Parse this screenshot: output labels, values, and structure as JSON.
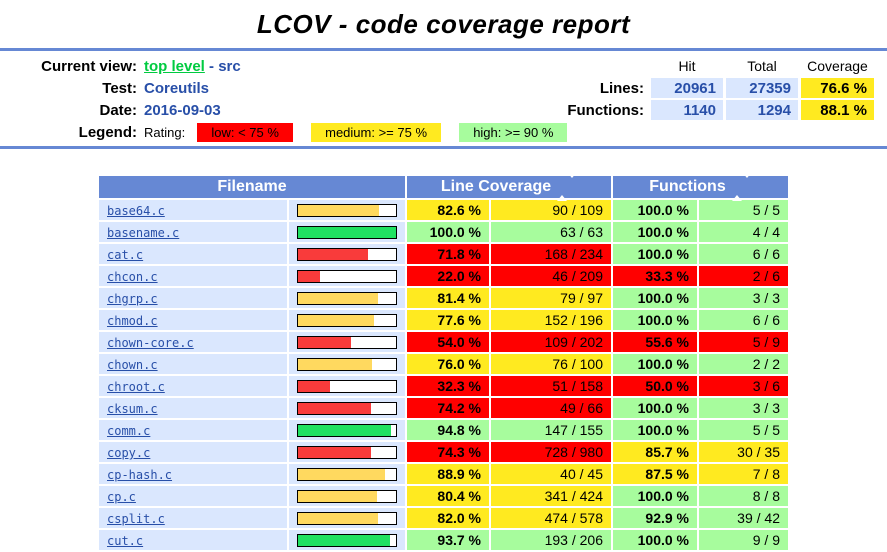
{
  "page": {
    "title": "LCOV - code coverage report"
  },
  "info": {
    "current_view_label": "Current view:",
    "current_view_link": "top level",
    "current_view_sep": "-",
    "current_view_page": "src",
    "test_label": "Test:",
    "test_value": "Coreutils",
    "date_label": "Date:",
    "date_value": "2016-09-03",
    "legend_label": "Legend:",
    "rating_label": "Rating:",
    "legend_low": "low: < 75 %",
    "legend_medium": "medium: >= 75 %",
    "legend_high": "high: >= 90 %",
    "col_hit": "Hit",
    "col_total": "Total",
    "col_coverage": "Coverage",
    "lines_label": "Lines:",
    "lines_hit": "20961",
    "lines_total": "27359",
    "lines_coverage": "76.6 %",
    "functions_label": "Functions:",
    "functions_hit": "1140",
    "functions_total": "1294",
    "functions_coverage": "88.1 %"
  },
  "colors": {
    "header_blue": "#6688D4",
    "cell_blue": "#DAE7FE",
    "value_text_blue": "#284FA8",
    "visited_link_green": "#00CB40",
    "rating": {
      "low": {
        "cell": "#FF0000",
        "bar": "#F93B3B"
      },
      "medium": {
        "cell": "#FFEA20",
        "bar": "#FFD95F"
      },
      "high": {
        "cell": "#A7FC9D",
        "bar": "#20E162"
      }
    }
  },
  "table": {
    "headers": {
      "filename": "Filename",
      "line_coverage": "Line Coverage",
      "functions": "Functions"
    },
    "rows": [
      {
        "file": "base64.c",
        "line_pct": 82.6,
        "line_pct_label": "82.6 %",
        "line_rating": "medium",
        "line_ratio": "90 / 109",
        "func_pct_label": "100.0 %",
        "func_rating": "high",
        "func_ratio": "5 / 5"
      },
      {
        "file": "basename.c",
        "line_pct": 100.0,
        "line_pct_label": "100.0 %",
        "line_rating": "high",
        "line_ratio": "63 / 63",
        "func_pct_label": "100.0 %",
        "func_rating": "high",
        "func_ratio": "4 / 4"
      },
      {
        "file": "cat.c",
        "line_pct": 71.8,
        "line_pct_label": "71.8 %",
        "line_rating": "low",
        "line_ratio": "168 / 234",
        "func_pct_label": "100.0 %",
        "func_rating": "high",
        "func_ratio": "6 / 6"
      },
      {
        "file": "chcon.c",
        "line_pct": 22.0,
        "line_pct_label": "22.0 %",
        "line_rating": "low",
        "line_ratio": "46 / 209",
        "func_pct_label": "33.3 %",
        "func_rating": "low",
        "func_ratio": "2 / 6"
      },
      {
        "file": "chgrp.c",
        "line_pct": 81.4,
        "line_pct_label": "81.4 %",
        "line_rating": "medium",
        "line_ratio": "79 / 97",
        "func_pct_label": "100.0 %",
        "func_rating": "high",
        "func_ratio": "3 / 3"
      },
      {
        "file": "chmod.c",
        "line_pct": 77.6,
        "line_pct_label": "77.6 %",
        "line_rating": "medium",
        "line_ratio": "152 / 196",
        "func_pct_label": "100.0 %",
        "func_rating": "high",
        "func_ratio": "6 / 6"
      },
      {
        "file": "chown-core.c",
        "line_pct": 54.0,
        "line_pct_label": "54.0 %",
        "line_rating": "low",
        "line_ratio": "109 / 202",
        "func_pct_label": "55.6 %",
        "func_rating": "low",
        "func_ratio": "5 / 9"
      },
      {
        "file": "chown.c",
        "line_pct": 76.0,
        "line_pct_label": "76.0 %",
        "line_rating": "medium",
        "line_ratio": "76 / 100",
        "func_pct_label": "100.0 %",
        "func_rating": "high",
        "func_ratio": "2 / 2"
      },
      {
        "file": "chroot.c",
        "line_pct": 32.3,
        "line_pct_label": "32.3 %",
        "line_rating": "low",
        "line_ratio": "51 / 158",
        "func_pct_label": "50.0 %",
        "func_rating": "low",
        "func_ratio": "3 / 6"
      },
      {
        "file": "cksum.c",
        "line_pct": 74.2,
        "line_pct_label": "74.2 %",
        "line_rating": "low",
        "line_ratio": "49 / 66",
        "func_pct_label": "100.0 %",
        "func_rating": "high",
        "func_ratio": "3 / 3"
      },
      {
        "file": "comm.c",
        "line_pct": 94.8,
        "line_pct_label": "94.8 %",
        "line_rating": "high",
        "line_ratio": "147 / 155",
        "func_pct_label": "100.0 %",
        "func_rating": "high",
        "func_ratio": "5 / 5"
      },
      {
        "file": "copy.c",
        "line_pct": 74.3,
        "line_pct_label": "74.3 %",
        "line_rating": "low",
        "line_ratio": "728 / 980",
        "func_pct_label": "85.7 %",
        "func_rating": "medium",
        "func_ratio": "30 / 35"
      },
      {
        "file": "cp-hash.c",
        "line_pct": 88.9,
        "line_pct_label": "88.9 %",
        "line_rating": "medium",
        "line_ratio": "40 / 45",
        "func_pct_label": "87.5 %",
        "func_rating": "medium",
        "func_ratio": "7 / 8"
      },
      {
        "file": "cp.c",
        "line_pct": 80.4,
        "line_pct_label": "80.4 %",
        "line_rating": "medium",
        "line_ratio": "341 / 424",
        "func_pct_label": "100.0 %",
        "func_rating": "high",
        "func_ratio": "8 / 8"
      },
      {
        "file": "csplit.c",
        "line_pct": 82.0,
        "line_pct_label": "82.0 %",
        "line_rating": "medium",
        "line_ratio": "474 / 578",
        "func_pct_label": "92.9 %",
        "func_rating": "high",
        "func_ratio": "39 / 42"
      },
      {
        "file": "cut.c",
        "line_pct": 93.7,
        "line_pct_label": "93.7 %",
        "line_rating": "high",
        "line_ratio": "193 / 206",
        "func_pct_label": "100.0 %",
        "func_rating": "high",
        "func_ratio": "9 / 9"
      }
    ]
  }
}
